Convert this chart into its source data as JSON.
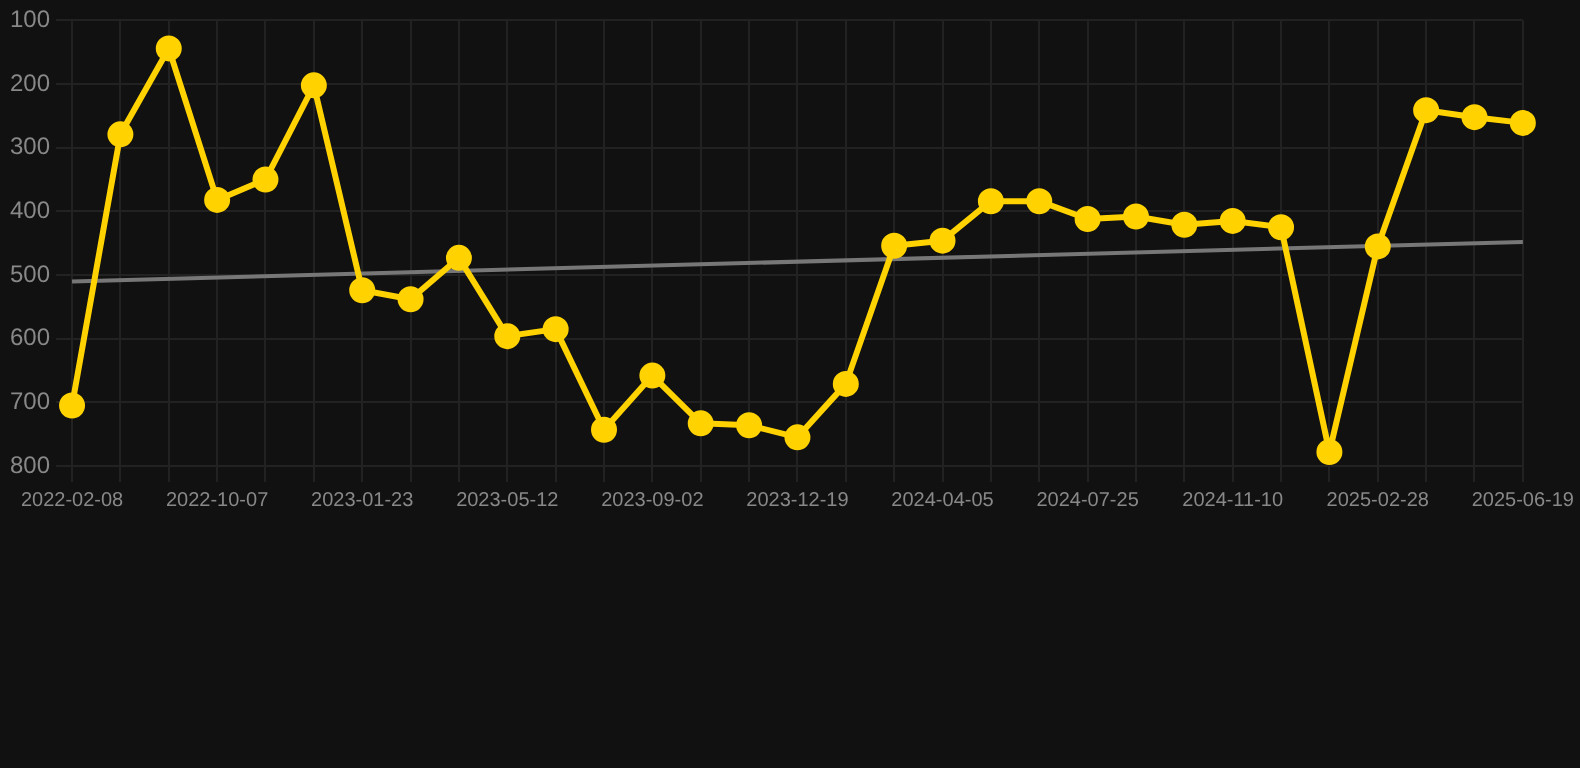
{
  "chart_data": {
    "type": "line",
    "categories": [
      "2022-02-08",
      null,
      null,
      "2022-10-07",
      null,
      null,
      "2023-01-23",
      null,
      null,
      "2023-05-12",
      null,
      null,
      "2023-09-02",
      null,
      null,
      "2023-12-19",
      null,
      null,
      "2024-04-05",
      null,
      null,
      "2024-07-25",
      null,
      null,
      "2024-11-10",
      null,
      null,
      "2025-02-28",
      null,
      null,
      "2025-06-19"
    ],
    "series": [
      {
        "color": "#ffd200",
        "marker": "circle",
        "values": [
          705,
          279,
          144,
          382,
          350,
          202,
          524,
          538,
          473,
          596,
          585,
          743,
          658,
          733,
          736,
          755,
          671,
          454,
          446,
          384,
          384,
          412,
          408,
          421,
          415,
          425,
          778,
          455,
          241,
          252,
          261
        ]
      },
      {
        "color": "#777777",
        "marker": "none",
        "values": [
          510,
          null,
          null,
          null,
          null,
          null,
          null,
          null,
          null,
          null,
          null,
          null,
          null,
          null,
          null,
          null,
          null,
          null,
          null,
          null,
          null,
          null,
          null,
          null,
          null,
          null,
          null,
          null,
          null,
          null,
          448
        ]
      }
    ],
    "ylim": [
      800,
      100
    ],
    "yticks": [
      100,
      200,
      300,
      400,
      500,
      600,
      700,
      800
    ],
    "grid": true
  }
}
